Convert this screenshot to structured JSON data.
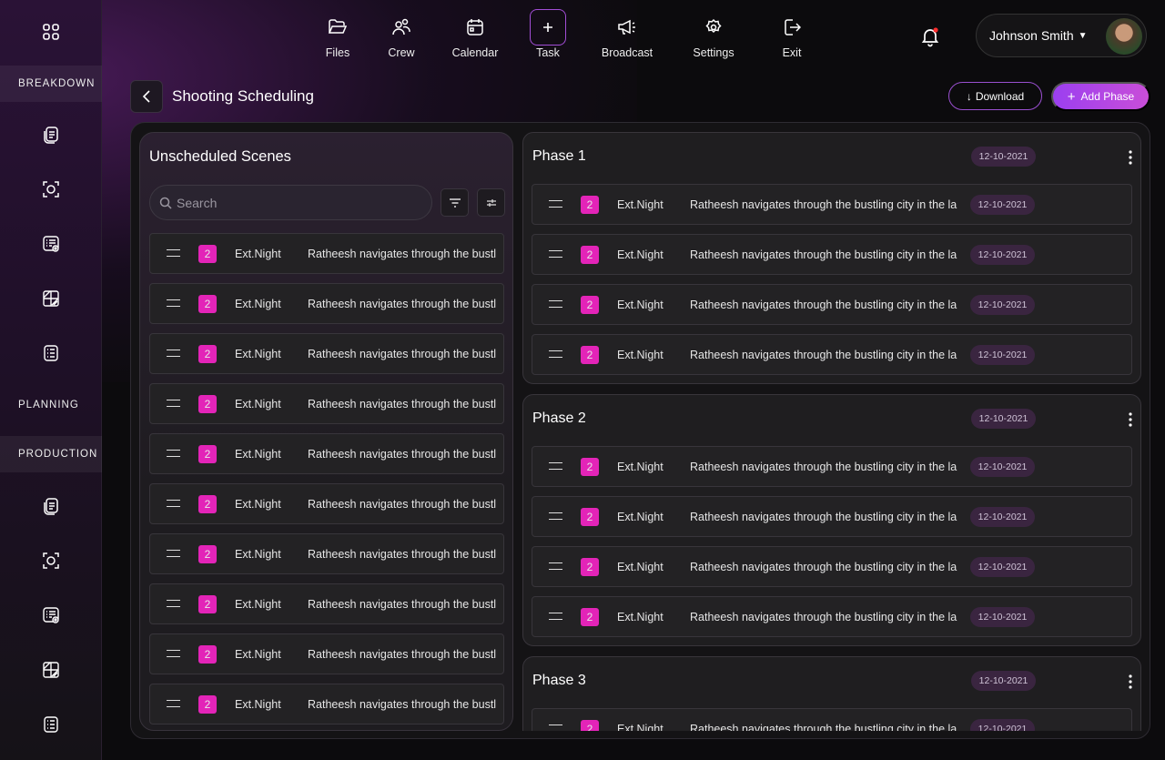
{
  "sidebar": {
    "sections": [
      "BREAKDOWN",
      "PLANNING",
      "PRODUCTION"
    ],
    "icons": [
      "grid-icon",
      "script-icon",
      "scan-icon",
      "list-view-icon",
      "storyboard-icon",
      "checklist-icon",
      "script-icon",
      "scan-icon",
      "list-view-icon",
      "storyboard-icon",
      "checklist-icon"
    ]
  },
  "nav": [
    {
      "label": "Files",
      "icon": "folder-icon"
    },
    {
      "label": "Crew",
      "icon": "users-icon"
    },
    {
      "label": "Calendar",
      "icon": "calendar-icon"
    },
    {
      "label": "Task",
      "icon": "plus-icon"
    },
    {
      "label": "Broadcast",
      "icon": "megaphone-icon"
    },
    {
      "label": "Settings",
      "icon": "gear-icon"
    },
    {
      "label": "Exit",
      "icon": "exit-icon"
    }
  ],
  "user": {
    "name": "Johnson Smith"
  },
  "page": {
    "title": "Shooting Scheduling",
    "download": "Download",
    "add_phase": "Add Phase"
  },
  "unscheduled": {
    "title": "Unscheduled Scenes",
    "search_placeholder": "Search",
    "rows": [
      {
        "num": "2",
        "setting": "Ext.Night",
        "desc": "Ratheesh navigates through the bustling city in the la"
      },
      {
        "num": "2",
        "setting": "Ext.Night",
        "desc": "Ratheesh navigates through the bustling city in the la"
      },
      {
        "num": "2",
        "setting": "Ext.Night",
        "desc": "Ratheesh navigates through the bustling city in the la"
      },
      {
        "num": "2",
        "setting": "Ext.Night",
        "desc": "Ratheesh navigates through the bustling city in the la"
      },
      {
        "num": "2",
        "setting": "Ext.Night",
        "desc": "Ratheesh navigates through the bustling city in the la"
      },
      {
        "num": "2",
        "setting": "Ext.Night",
        "desc": "Ratheesh navigates through the bustling city in the la"
      },
      {
        "num": "2",
        "setting": "Ext.Night",
        "desc": "Ratheesh navigates through the bustling city in the la"
      },
      {
        "num": "2",
        "setting": "Ext.Night",
        "desc": "Ratheesh navigates through the bustling city in the la"
      },
      {
        "num": "2",
        "setting": "Ext.Night",
        "desc": "Ratheesh navigates through the bustling city in the la"
      },
      {
        "num": "2",
        "setting": "Ext.Night",
        "desc": "Ratheesh navigates through the bustling city in the la"
      }
    ]
  },
  "phases": [
    {
      "title": "Phase 1",
      "date": "12-10-2021",
      "rows": [
        {
          "num": "2",
          "setting": "Ext.Night",
          "desc": "Ratheesh navigates through the bustling city in the la",
          "date": "12-10-2021"
        },
        {
          "num": "2",
          "setting": "Ext.Night",
          "desc": "Ratheesh navigates through the bustling city in the la",
          "date": "12-10-2021"
        },
        {
          "num": "2",
          "setting": "Ext.Night",
          "desc": "Ratheesh navigates through the bustling city in the la",
          "date": "12-10-2021"
        },
        {
          "num": "2",
          "setting": "Ext.Night",
          "desc": "Ratheesh navigates through the bustling city in the la",
          "date": "12-10-2021"
        }
      ]
    },
    {
      "title": "Phase 2",
      "date": "12-10-2021",
      "rows": [
        {
          "num": "2",
          "setting": "Ext.Night",
          "desc": "Ratheesh navigates through the bustling city in the la",
          "date": "12-10-2021"
        },
        {
          "num": "2",
          "setting": "Ext.Night",
          "desc": "Ratheesh navigates through the bustling city in the la",
          "date": "12-10-2021"
        },
        {
          "num": "2",
          "setting": "Ext.Night",
          "desc": "Ratheesh navigates through the bustling city in the la",
          "date": "12-10-2021"
        },
        {
          "num": "2",
          "setting": "Ext.Night",
          "desc": "Ratheesh navigates through the bustling city in the la",
          "date": "12-10-2021"
        }
      ]
    },
    {
      "title": "Phase 3",
      "date": "12-10-2021",
      "rows": [
        {
          "num": "2",
          "setting": "Ext.Night",
          "desc": "Ratheesh navigates through the bustling city in the la",
          "date": "12-10-2021"
        }
      ]
    }
  ],
  "colors": {
    "accent": "#a24ed6",
    "badge": "#e324b8",
    "notification": "#ff2d2d"
  }
}
